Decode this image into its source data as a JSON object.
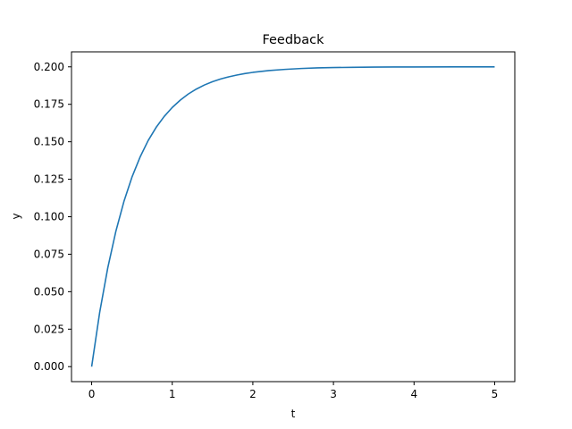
{
  "chart_data": {
    "type": "line",
    "title": "Feedback",
    "xlabel": "t",
    "ylabel": "y",
    "xlim": [
      -0.25,
      5.25
    ],
    "ylim": [
      -0.01,
      0.21
    ],
    "xticks": [
      0,
      1,
      2,
      3,
      4,
      5
    ],
    "xtick_labels": [
      "0",
      "1",
      "2",
      "3",
      "4",
      "5"
    ],
    "yticks": [
      0.0,
      0.025,
      0.05,
      0.075,
      0.1,
      0.125,
      0.15,
      0.175,
      0.2
    ],
    "ytick_labels": [
      "0.000",
      "0.025",
      "0.050",
      "0.075",
      "0.100",
      "0.125",
      "0.150",
      "0.175",
      "0.200"
    ],
    "grid": false,
    "series": [
      {
        "color": "#1f77b4",
        "x": [
          0,
          0.1,
          0.2,
          0.3,
          0.4,
          0.5,
          0.6,
          0.7,
          0.8,
          0.9,
          1.0,
          1.1,
          1.2,
          1.3,
          1.4,
          1.5,
          1.6,
          1.7,
          1.8,
          1.9,
          2.0,
          2.2,
          2.4,
          2.6,
          2.8,
          3.0,
          3.25,
          3.5,
          3.75,
          4.0,
          4.5,
          5.0
        ],
        "y": [
          0.0,
          0.0363,
          0.0659,
          0.0902,
          0.1101,
          0.1264,
          0.1397,
          0.1507,
          0.1596,
          0.1669,
          0.1729,
          0.1778,
          0.1819,
          0.1852,
          0.1879,
          0.1901,
          0.1919,
          0.1933,
          0.1945,
          0.1955,
          0.1963,
          0.1975,
          0.1983,
          0.1989,
          0.1993,
          0.1995,
          0.1997,
          0.1998,
          0.1999,
          0.1999,
          0.2,
          0.2
        ]
      }
    ]
  }
}
